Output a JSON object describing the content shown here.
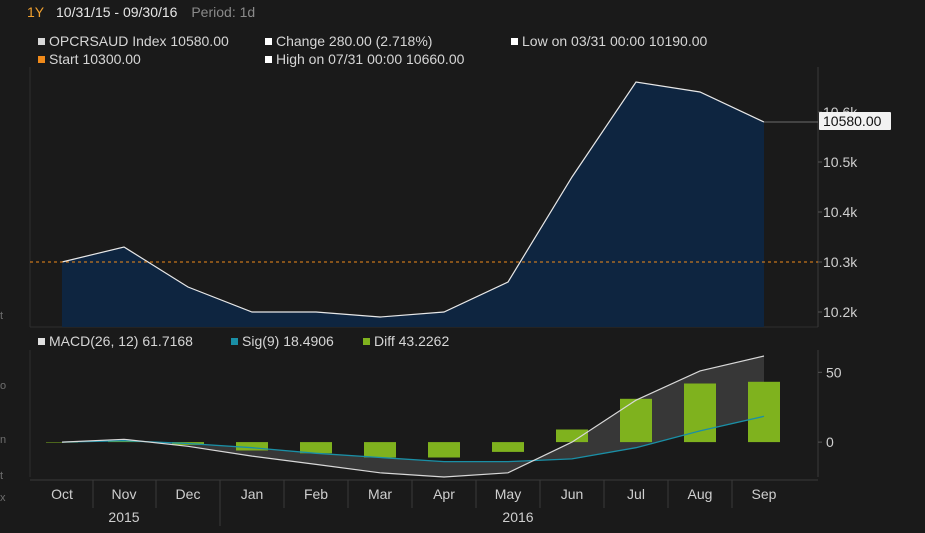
{
  "header": {
    "range_button": "1Y",
    "date_range": "10/31/15 - 09/30/16",
    "period": "Period: 1d"
  },
  "legend_top": {
    "index": "OPCRSAUD Index 10580.00",
    "change": "Change 280.00 (2.718%)",
    "low": "Low on 03/31 00:00 10190.00",
    "start": "Start 10300.00",
    "high": "High on 07/31 00:00 10660.00"
  },
  "legend_bottom": {
    "macd": "MACD(26, 12) 61.7168",
    "sig": "Sig(9) 18.4906",
    "diff": "Diff 43.2262"
  },
  "price_tag": "10580.00",
  "colors": {
    "background": "#1a1a1a",
    "area_fill": "#0e2540",
    "price_line": "#e8e8e8",
    "start_line": "#f08a1a",
    "macd_line": "#d8d8d8",
    "signal_line": "#1a8fa6",
    "diff_bar": "#7fb21e",
    "grid": "#2e2e2e"
  },
  "chart_data": [
    {
      "type": "area",
      "categories": [
        "Oct",
        "Nov",
        "Dec",
        "Jan",
        "Feb",
        "Mar",
        "Apr",
        "May",
        "Jun",
        "Jul",
        "Aug",
        "Sep"
      ],
      "series": [
        {
          "name": "OPCRSAUD Index",
          "values": [
            10300,
            10330,
            10250,
            10200,
            10200,
            10190,
            10200,
            10260,
            10470,
            10660,
            10640,
            10580
          ]
        }
      ],
      "reference_line": {
        "name": "Start",
        "value": 10300
      },
      "yticks": [
        10200,
        10300,
        10400,
        10500,
        10600
      ],
      "ytick_labels": [
        "10.2k",
        "10.3k",
        "10.4k",
        "10.5k",
        "10.6k"
      ],
      "ylim": [
        10170,
        10690
      ],
      "year_labels": [
        "2015",
        "2016"
      ],
      "grid": false
    },
    {
      "type": "bar",
      "categories": [
        "Oct",
        "Nov",
        "Dec",
        "Jan",
        "Feb",
        "Mar",
        "Apr",
        "May",
        "Jun",
        "Jul",
        "Aug",
        "Sep"
      ],
      "series": [
        {
          "name": "MACD(26, 12)",
          "style": "line",
          "values": [
            0,
            2,
            -3,
            -10,
            -16,
            -22,
            -25,
            -22,
            0,
            30,
            51,
            61.7168
          ]
        },
        {
          "name": "Sig(9)",
          "style": "line",
          "values": [
            0,
            1,
            -1,
            -4,
            -8,
            -11,
            -14,
            -14,
            -12,
            -4,
            8,
            18.4906
          ]
        },
        {
          "name": "Diff",
          "style": "bar",
          "values": [
            0,
            1,
            -2,
            -6,
            -8,
            -11,
            -11,
            -7,
            9,
            31,
            42,
            43.2262
          ]
        }
      ],
      "yticks": [
        0,
        50
      ],
      "ytick_labels": [
        "0",
        "50"
      ],
      "ylim": [
        -25,
        66
      ],
      "grid": false
    }
  ]
}
